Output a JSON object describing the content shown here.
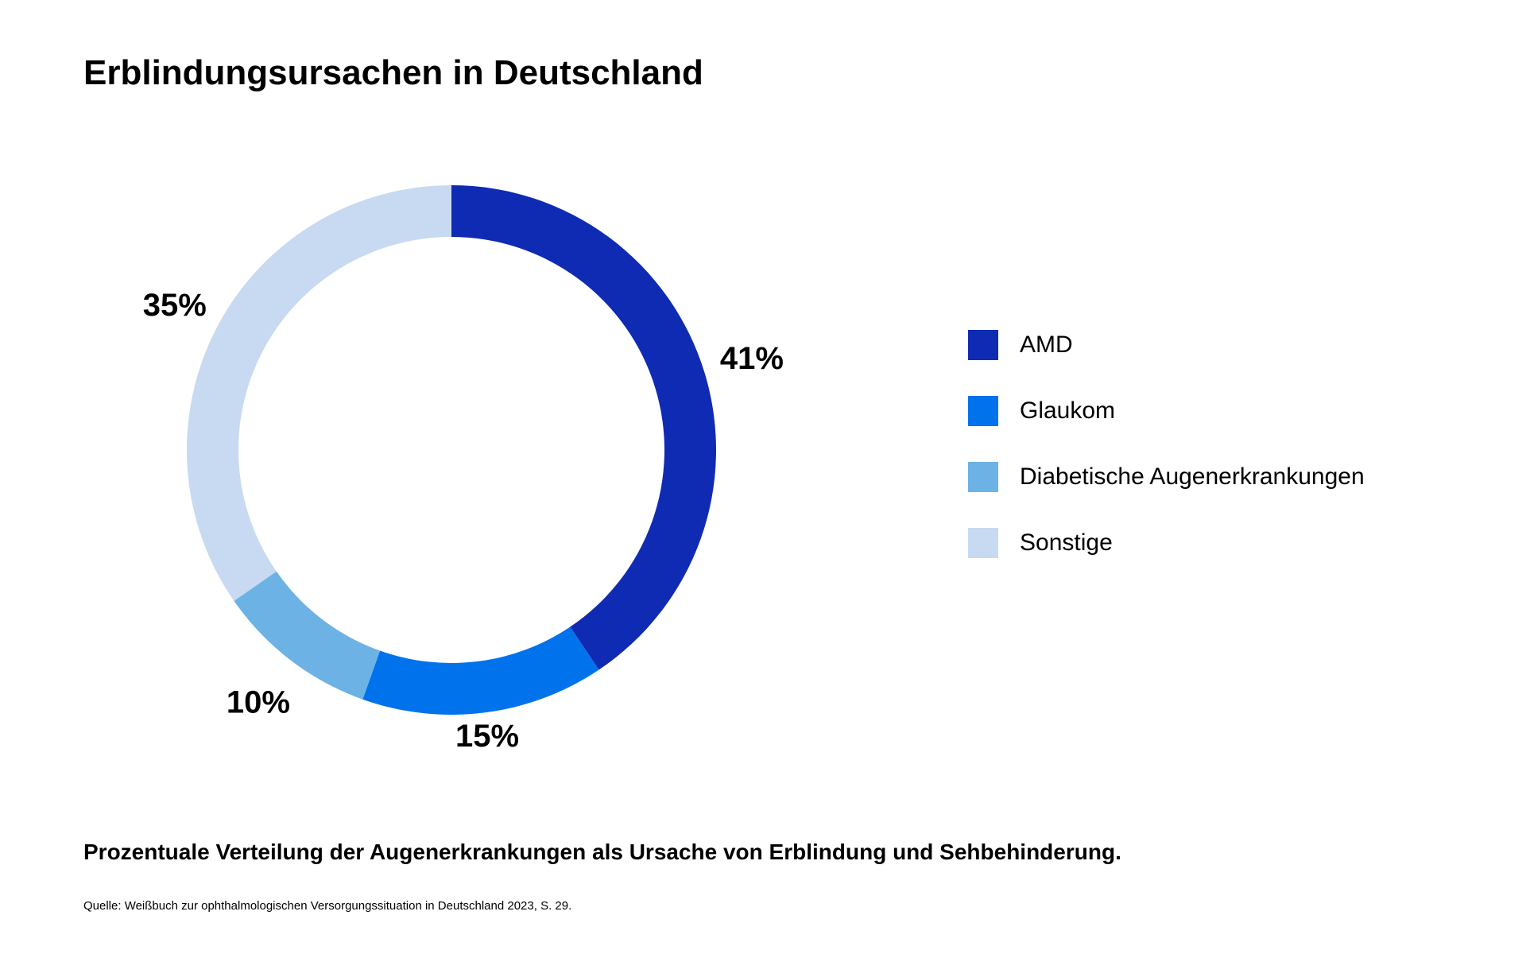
{
  "chart_data": {
    "type": "pie",
    "variant": "donut",
    "title": "Erblindungsursachen in Deutschland",
    "categories": [
      "AMD",
      "Glaukom",
      "Diabetische Augenerkrankungen",
      "Sonstige"
    ],
    "values": [
      41,
      15,
      10,
      35
    ],
    "value_labels": [
      "41%",
      "15%",
      "10%",
      "35%"
    ],
    "unit": "%",
    "colors": [
      "#0f2bb3",
      "#0073ec",
      "#6cb2e4",
      "#c7daf2"
    ],
    "legend_position": "right"
  },
  "caption": "Prozentuale Verteilung der Augenerkrankungen als Ursache von Erblindung und Sehbehinderung.",
  "source": "Quelle: Weißbuch zur ophthalmologischen Versorgungssituation in Deutschland 2023, S. 29."
}
